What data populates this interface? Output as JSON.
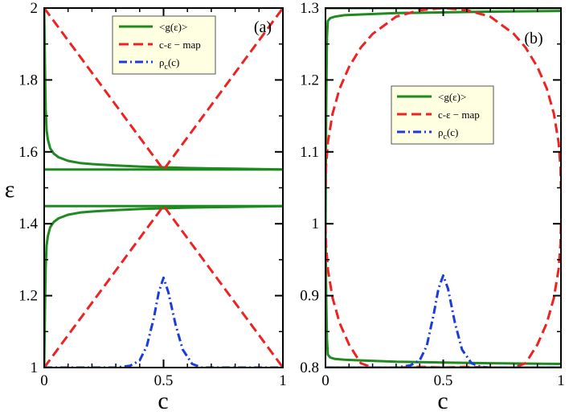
{
  "chart_data": [
    {
      "panel": "(a)",
      "type": "line",
      "xlabel": "c",
      "ylabel": "ε",
      "xlim": [
        0,
        1
      ],
      "ylim": [
        1,
        2
      ],
      "xticks": [
        {
          "value": 0,
          "label": "0"
        },
        {
          "value": 0.5,
          "label": "0.5"
        },
        {
          "value": 1,
          "label": "1"
        }
      ],
      "yticks": [
        {
          "value": 1,
          "label": "1"
        },
        {
          "value": 1.2,
          "label": "1.2"
        },
        {
          "value": 1.4,
          "label": "1.4"
        },
        {
          "value": 1.6,
          "label": "1.6"
        },
        {
          "value": 1.8,
          "label": "1.8"
        },
        {
          "value": 2,
          "label": "2"
        }
      ],
      "legend": {
        "position": "top-center",
        "entries": [
          {
            "label": "<g(ε)>",
            "color": "#1f8a1f",
            "style": "solid"
          },
          {
            "label": "c-ε − map",
            "color": "#ee2222",
            "style": "dashed"
          },
          {
            "label": "ρc(c)",
            "base": "ρ",
            "sub": "c",
            "tail": "(c)",
            "color": "#1a3cdc",
            "style": "dashdot"
          }
        ]
      },
      "series": [
        {
          "name": "<g(ε)> upper band",
          "style": "solid",
          "color": "#1f8a1f",
          "x": [
            0.0,
            0.003,
            0.006,
            0.01,
            0.015,
            0.025,
            0.04,
            0.06,
            0.1,
            0.15,
            0.2,
            0.3,
            0.4,
            0.5,
            0.6,
            0.7,
            0.8,
            0.9,
            1.0
          ],
          "y": [
            2.0,
            1.85,
            1.72,
            1.66,
            1.635,
            1.61,
            1.595,
            1.585,
            1.575,
            1.569,
            1.566,
            1.562,
            1.559,
            1.557,
            1.555,
            1.554,
            1.553,
            1.552,
            1.551
          ]
        },
        {
          "name": "<g(ε)> gap top",
          "style": "solid",
          "color": "#1f8a1f",
          "x": [
            0.0,
            1.0
          ],
          "y": [
            1.551,
            1.551
          ]
        },
        {
          "name": "<g(ε)> gap bottom",
          "style": "solid",
          "color": "#1f8a1f",
          "x": [
            0.0,
            1.0
          ],
          "y": [
            1.449,
            1.449
          ]
        },
        {
          "name": "<g(ε)> lower band",
          "style": "solid",
          "color": "#1f8a1f",
          "x": [
            0.0,
            0.003,
            0.006,
            0.01,
            0.015,
            0.025,
            0.04,
            0.06,
            0.1,
            0.15,
            0.2,
            0.3,
            0.4,
            0.5,
            0.6,
            0.7,
            0.8,
            0.9,
            1.0
          ],
          "y": [
            1.0,
            1.15,
            1.28,
            1.34,
            1.365,
            1.39,
            1.405,
            1.415,
            1.425,
            1.431,
            1.434,
            1.438,
            1.441,
            1.443,
            1.445,
            1.446,
            1.447,
            1.448,
            1.449
          ]
        },
        {
          "name": "c-ε map upper",
          "style": "dashed",
          "color": "#ee2222",
          "x": [
            0.0,
            0.5,
            1.0
          ],
          "y": [
            2.0,
            1.55,
            2.0
          ]
        },
        {
          "name": "c-ε map lower",
          "style": "dashed",
          "color": "#ee2222",
          "x": [
            0.0,
            0.5,
            1.0
          ],
          "y": [
            1.0,
            1.45,
            1.0
          ]
        },
        {
          "name": "ρc(c)",
          "style": "dashdot",
          "color": "#1a3cdc",
          "x": [
            0.0,
            0.3,
            0.36,
            0.4,
            0.43,
            0.46,
            0.48,
            0.5,
            0.52,
            0.55,
            0.58,
            0.62,
            0.66,
            0.7,
            1.0
          ],
          "y": [
            1.0,
            1.0,
            1.005,
            1.02,
            1.06,
            1.14,
            1.21,
            1.25,
            1.21,
            1.12,
            1.05,
            1.01,
            1.0,
            1.0,
            1.0
          ]
        }
      ]
    },
    {
      "panel": "(b)",
      "type": "line",
      "xlabel": "c",
      "ylabel": "",
      "xlim": [
        0,
        1
      ],
      "ylim": [
        0.8,
        1.3
      ],
      "xticks": [
        {
          "value": 0,
          "label": "0"
        },
        {
          "value": 0.5,
          "label": "0.5"
        },
        {
          "value": 1,
          "label": "1"
        }
      ],
      "yticks": [
        {
          "value": 0.8,
          "label": "0.8"
        },
        {
          "value": 0.9,
          "label": "0.9"
        },
        {
          "value": 1,
          "label": "1"
        },
        {
          "value": 1.1,
          "label": "1.1"
        },
        {
          "value": 1.2,
          "label": "1.2"
        },
        {
          "value": 1.3,
          "label": "1.3"
        }
      ],
      "legend": {
        "position": "top-center",
        "entries": [
          {
            "label": "<g(ε)>",
            "color": "#1f8a1f",
            "style": "solid"
          },
          {
            "label": "c-ε − map",
            "color": "#ee2222",
            "style": "dashed"
          },
          {
            "label": "ρc(c)",
            "base": "ρ",
            "sub": "c",
            "tail": "(c)",
            "color": "#1a3cdc",
            "style": "dashdot"
          }
        ]
      },
      "series": [
        {
          "name": "<g(ε)> upper branch",
          "style": "solid",
          "color": "#1f8a1f",
          "x": [
            0.0,
            0.003,
            0.006,
            0.01,
            0.02,
            0.04,
            0.08,
            0.15,
            0.3,
            0.5,
            0.7,
            1.0
          ],
          "y": [
            0.98,
            1.16,
            1.26,
            1.282,
            1.286,
            1.288,
            1.29,
            1.291,
            1.293,
            1.294,
            1.295,
            1.296
          ]
        },
        {
          "name": "<g(ε)> top line",
          "style": "solid",
          "color": "#1f8a1f",
          "x": [
            0.0,
            1.0
          ],
          "y": [
            1.3,
            1.3
          ]
        },
        {
          "name": "<g(ε)> lower branch",
          "style": "solid",
          "color": "#1f8a1f",
          "x": [
            0.0,
            0.003,
            0.006,
            0.01,
            0.02,
            0.04,
            0.08,
            0.15,
            0.3,
            0.5,
            0.7,
            1.0
          ],
          "y": [
            0.99,
            0.9,
            0.84,
            0.818,
            0.814,
            0.812,
            0.811,
            0.81,
            0.808,
            0.807,
            0.806,
            0.805
          ]
        },
        {
          "name": "<g(ε)> bottom line",
          "style": "solid",
          "color": "#1f8a1f",
          "x": [
            0.0,
            1.0
          ],
          "y": [
            0.8,
            0.8
          ]
        },
        {
          "name": "c-ε map upper arc",
          "style": "dashed",
          "color": "#ee2222",
          "x": [
            0.0,
            0.002,
            0.01,
            0.03,
            0.06,
            0.1,
            0.15,
            0.2,
            0.3,
            0.4,
            0.5,
            0.6,
            0.7,
            0.8,
            0.85,
            0.9,
            0.94,
            0.97,
            0.99,
            0.998,
            1.0
          ],
          "y": [
            1.05,
            1.078,
            1.113,
            1.153,
            1.188,
            1.218,
            1.245,
            1.264,
            1.288,
            1.297,
            1.3,
            1.297,
            1.288,
            1.264,
            1.245,
            1.218,
            1.188,
            1.153,
            1.113,
            1.078,
            1.05
          ]
        },
        {
          "name": "c-ε map lower arc",
          "style": "dashed",
          "color": "#ee2222",
          "x": [
            0.0,
            0.002,
            0.01,
            0.03,
            0.06,
            0.1,
            0.15,
            0.2,
            0.3,
            0.4,
            0.5,
            0.6,
            0.7,
            0.8,
            0.85,
            0.9,
            0.94,
            0.97,
            0.99,
            0.998,
            1.0
          ],
          "y": [
            1.0,
            0.972,
            0.937,
            0.897,
            0.862,
            0.832,
            0.806,
            0.8,
            0.8,
            0.801,
            0.8,
            0.801,
            0.8,
            0.8,
            0.806,
            0.832,
            0.862,
            0.897,
            0.937,
            0.972,
            1.0
          ]
        },
        {
          "name": "ρc(c)",
          "style": "dashdot",
          "color": "#1a3cdc",
          "x": [
            0.0,
            0.3,
            0.36,
            0.4,
            0.43,
            0.46,
            0.48,
            0.5,
            0.52,
            0.55,
            0.58,
            0.62,
            0.66,
            0.7,
            1.0
          ],
          "y": [
            0.8,
            0.8,
            0.803,
            0.81,
            0.83,
            0.875,
            0.91,
            0.928,
            0.91,
            0.862,
            0.825,
            0.806,
            0.801,
            0.8,
            0.8
          ]
        }
      ]
    }
  ]
}
